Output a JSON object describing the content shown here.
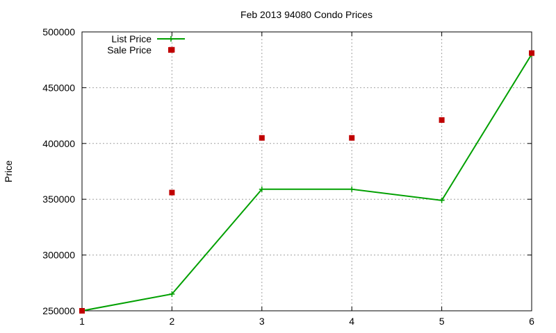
{
  "chart_data": {
    "type": "line",
    "title": "Feb 2013 94080 Condo Prices",
    "xlabel": "",
    "ylabel": "Price",
    "xlim": [
      1,
      6
    ],
    "ylim": [
      250000,
      500000
    ],
    "x_ticks": [
      "1",
      "2",
      "3",
      "4",
      "5",
      "6"
    ],
    "y_ticks": [
      "250000",
      "300000",
      "350000",
      "400000",
      "450000",
      "500000"
    ],
    "grid": true,
    "legend_position": "top-left",
    "series": [
      {
        "name": "List Price",
        "style": "linespoints",
        "color": "#00a000",
        "points": [
          [
            1,
            250000
          ],
          [
            2,
            265000
          ],
          [
            3,
            359000
          ],
          [
            4,
            359000
          ],
          [
            5,
            349000
          ],
          [
            6,
            480000
          ]
        ]
      },
      {
        "name": "Sale Price",
        "style": "points",
        "color": "#c00000",
        "points": [
          [
            1,
            250000
          ],
          [
            2,
            484000
          ],
          [
            2,
            356000
          ],
          [
            3,
            405000
          ],
          [
            4,
            405000
          ],
          [
            5,
            421000
          ],
          [
            6,
            481000
          ]
        ]
      }
    ]
  }
}
